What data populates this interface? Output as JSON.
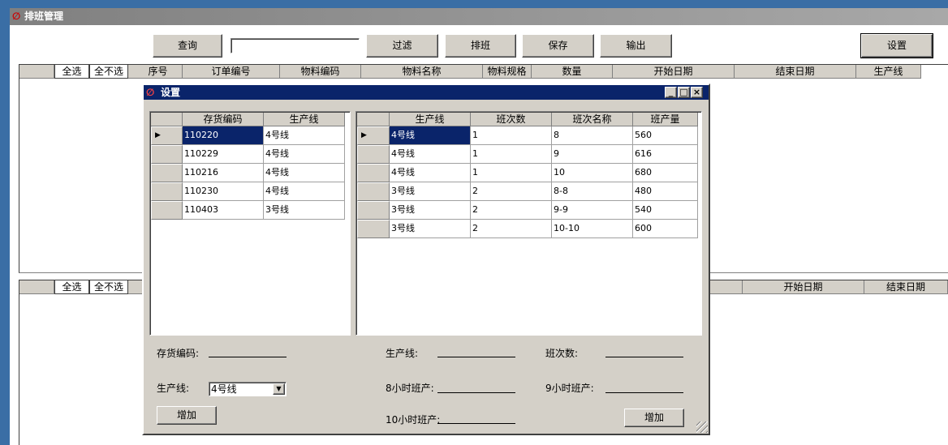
{
  "window": {
    "title": "排班管理"
  },
  "toolbar": {
    "buttons": [
      "查询",
      "过滤",
      "排班",
      "保存",
      "输出"
    ],
    "settings_button": "设置"
  },
  "grid1": {
    "tabs": [
      "全选",
      "全不选"
    ],
    "columns": [
      "序号",
      "订单编号",
      "物料编码",
      "物料名称",
      "物料规格",
      "数量",
      "开始日期",
      "结束日期",
      "生产线"
    ]
  },
  "grid2": {
    "tabs": [
      "全选",
      "全不选"
    ],
    "columns": [
      "开始日期",
      "结束日期"
    ]
  },
  "dialog": {
    "title": "设置",
    "left_table": {
      "columns": [
        "存货编码",
        "生产线"
      ],
      "rows": [
        [
          "110220",
          "4号线"
        ],
        [
          "110229",
          "4号线"
        ],
        [
          "110216",
          "4号线"
        ],
        [
          "110230",
          "4号线"
        ],
        [
          "110403",
          "3号线"
        ]
      ]
    },
    "right_table": {
      "columns": [
        "生产线",
        "班次数",
        "班次名称",
        "班产量"
      ],
      "rows": [
        [
          "4号线",
          "1",
          "8",
          "560"
        ],
        [
          "4号线",
          "1",
          "9",
          "616"
        ],
        [
          "4号线",
          "1",
          "10",
          "680"
        ],
        [
          "3号线",
          "2",
          "8-8",
          "480"
        ],
        [
          "3号线",
          "2",
          "9-9",
          "540"
        ],
        [
          "3号线",
          "2",
          "10-10",
          "600"
        ]
      ]
    },
    "form": {
      "item_code_label": "存货编码:",
      "line_label_right": "生产线:",
      "shift_count_label": "班次数:",
      "line_label_left": "生产线:",
      "line_select": "4号线",
      "h8_label": "8小时班产:",
      "h9_label": "9小时班产:",
      "h10_label": "10小时班产:",
      "add_left": "增加",
      "add_right": "增加"
    }
  }
}
